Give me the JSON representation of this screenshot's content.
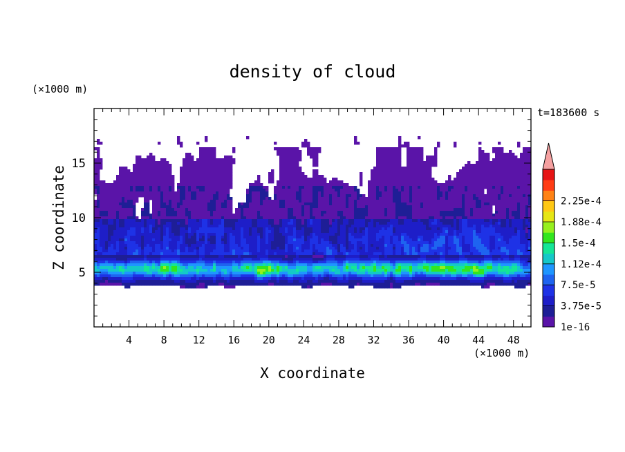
{
  "chart_data": {
    "type": "heatmap",
    "title": "density of cloud",
    "xlabel": "X coordinate",
    "ylabel": "Z coordinate",
    "x_unit": "(×1000 m)",
    "y_unit": "(×1000 m)",
    "time_label": "t=183600 s",
    "xlim": [
      0,
      50
    ],
    "ylim": [
      0,
      20
    ],
    "x_ticks": [
      4,
      8,
      12,
      16,
      20,
      24,
      28,
      32,
      36,
      40,
      44,
      48
    ],
    "y_ticks": [
      5,
      10,
      15
    ],
    "colorbar": {
      "levels": [
        1e-16,
        1.875e-05,
        3.75e-05,
        5.625e-05,
        7.5e-05,
        9.375e-05,
        0.0001125,
        0.00013125,
        0.00015,
        0.00016875,
        0.0001875,
        0.00020625,
        0.000225,
        0.00024375
      ],
      "labels": [
        "1e-16",
        "3.75e-5",
        "7.5e-5",
        "1.12e-4",
        "1.5e-4",
        "1.88e-4",
        "2.25e-4"
      ],
      "colors": [
        "#5a14a8",
        "#1e1e96",
        "#1e1ec8",
        "#1e32e6",
        "#1e64f0",
        "#1e96ff",
        "#14c8c8",
        "#14e696",
        "#32e61e",
        "#96f01e",
        "#e6e614",
        "#ffc814",
        "#ff8214",
        "#ff3c14",
        "#e61414"
      ],
      "overflow_color": "#f5a0a0"
    },
    "layers": [
      {
        "z_range": [
          3.5,
          4.2
        ],
        "value_class": "1e-16 to 3.75e-5"
      },
      {
        "z_range": [
          4.2,
          6.5
        ],
        "value_class": "3.75e-5 to 1.88e-4",
        "peak_x": [
          19,
          20,
          40,
          44
        ]
      },
      {
        "z_range": [
          6.5,
          10.0
        ],
        "value_class": "1e-16 to 7.5e-5"
      },
      {
        "z_range": [
          10.0,
          16.3
        ],
        "value_class": "1e-16 to 3.75e-5",
        "cover": "broken"
      }
    ]
  }
}
